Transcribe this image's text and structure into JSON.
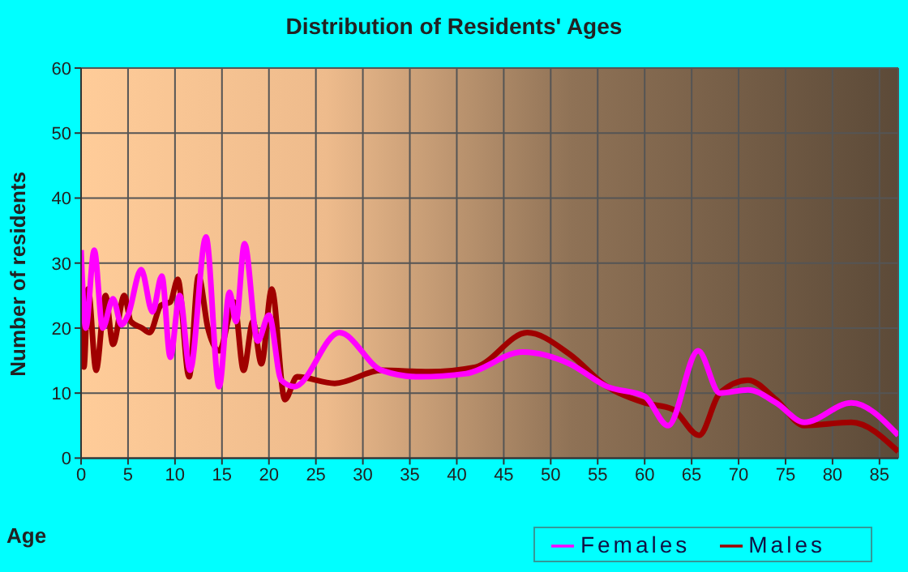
{
  "chart_data": {
    "type": "line",
    "title": "Distribution of Residents' Ages",
    "xlabel": "Age",
    "ylabel": "Number of residents",
    "xlim": [
      0,
      87
    ],
    "xticks": [
      0,
      5,
      10,
      15,
      20,
      25,
      30,
      35,
      40,
      45,
      50,
      55,
      60,
      65,
      70,
      75,
      80,
      85
    ],
    "ylim": [
      0,
      60
    ],
    "yticks": [
      0,
      10,
      20,
      30,
      40,
      50,
      60
    ],
    "grid": true,
    "legend": "bottom right",
    "marker": "none",
    "line_style": "solid",
    "series": [
      {
        "name": "Males",
        "color": "#a00000",
        "x": [
          0,
          0.3,
          0.75,
          1.6,
          2.6,
          3.4,
          4.6,
          5.3,
          6.5,
          7.3,
          8.5,
          9.5,
          10.3,
          11.5,
          12.5,
          13.5,
          14.7,
          16.3,
          17.3,
          18.3,
          19.2,
          20.3,
          21.7,
          23,
          27,
          32,
          37,
          42,
          47.5,
          52,
          56,
          60,
          63,
          65.8,
          68,
          71,
          74,
          77,
          82,
          87
        ],
        "values": [
          29,
          14,
          26,
          13.5,
          25,
          17.5,
          25,
          21,
          20,
          19.3,
          23.5,
          24,
          27.5,
          12.5,
          28,
          20,
          16.5,
          24,
          13.5,
          21,
          14.5,
          26,
          9,
          12.5,
          11.5,
          13.5,
          13.3,
          14,
          19.3,
          16,
          11,
          8.5,
          7.5,
          3.5,
          10,
          12,
          9,
          5,
          5.5,
          1
        ]
      },
      {
        "name": "Females",
        "color": "#ff00ff",
        "x": [
          0,
          0.5,
          1.4,
          2.3,
          3.4,
          4.3,
          5,
          6.4,
          7.6,
          8.6,
          9.5,
          10.5,
          11.6,
          13.3,
          14.7,
          15.8,
          16.5,
          17.4,
          18.8,
          20,
          21.3,
          22.7,
          27.5,
          32,
          36,
          41,
          47,
          52,
          56,
          60,
          62.5,
          65.7,
          68,
          71,
          74,
          77,
          82,
          87
        ],
        "values": [
          32,
          20,
          32,
          20,
          24.5,
          20.5,
          22,
          29,
          22.5,
          28,
          15.5,
          25,
          13.5,
          34,
          11,
          25.5,
          21,
          33,
          18,
          22,
          12,
          11,
          19.3,
          13.5,
          12.5,
          13,
          16.3,
          14.5,
          11,
          9.5,
          5,
          16.5,
          10,
          10.5,
          8.5,
          5.5,
          8.5,
          3.5
        ]
      }
    ]
  }
}
